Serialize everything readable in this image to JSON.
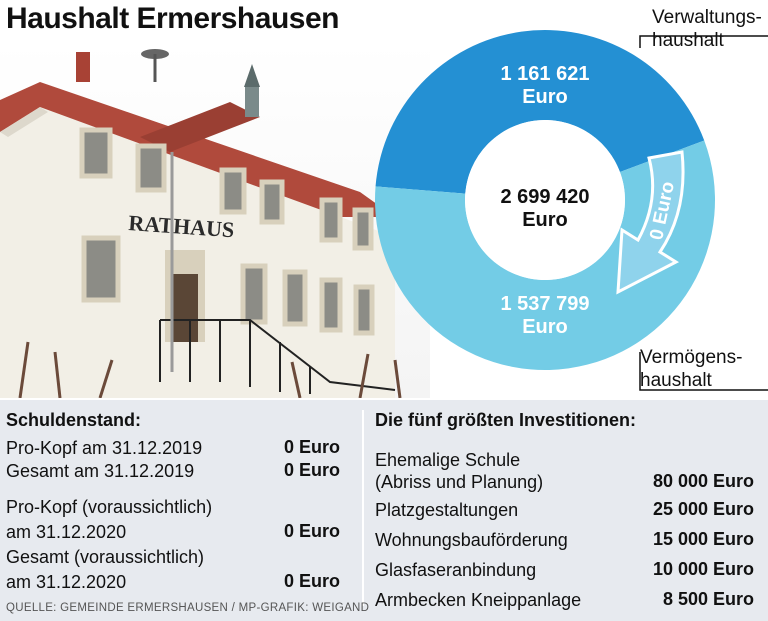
{
  "title": "Haushalt Ermershausen",
  "photo": {
    "sign_text": "RATHAUS"
  },
  "chart_data": {
    "type": "pie",
    "slices": [
      {
        "name": "Verwaltungshaushalt",
        "value": 1161621,
        "color": "#2490d3",
        "value_label": "1 161 621",
        "unit_label": "Euro"
      },
      {
        "name": "Vermögenshaushalt",
        "value": 1537799,
        "color": "#73cce6",
        "value_label": "1 537 799",
        "unit_label": "Euro"
      }
    ],
    "total": {
      "value": 2699420,
      "value_label": "2 699 420",
      "unit_label": "Euro"
    },
    "transfer": {
      "value": 0,
      "label": "0 Euro"
    },
    "legend_labels": {
      "top": [
        "Verwaltungs-",
        "haushalt"
      ],
      "bottom": [
        "Vermögens-",
        "haushalt"
      ]
    }
  },
  "debt": {
    "heading": "Schuldenstand:",
    "rows": [
      {
        "label": "Pro-Kopf am 31.12.2019",
        "value": "0 Euro"
      },
      {
        "label": "Gesamt am 31.12.2019",
        "value": "0 Euro"
      },
      {
        "label": "Pro-Kopf (voraussichtlich)",
        "value": ""
      },
      {
        "label": "am 31.12.2020",
        "value": "0 Euro"
      },
      {
        "label": "Gesamt (voraussichtlich)",
        "value": ""
      },
      {
        "label": "am 31.12.2020",
        "value": "0 Euro"
      }
    ]
  },
  "investments": {
    "heading": "Die fünf größten Investitionen:",
    "rows": [
      {
        "label": "Ehemalige Schule",
        "value": ""
      },
      {
        "label": "(Abriss und Planung)",
        "value": "80 000 Euro"
      },
      {
        "label": "Platzgestaltungen",
        "value": "25 000 Euro"
      },
      {
        "label": "Wohnungsbauförderung",
        "value": "15 000 Euro"
      },
      {
        "label": "Glasfaseranbindung",
        "value": "10 000 Euro"
      },
      {
        "label": "Armbecken Kneippanlage",
        "value": "8 500 Euro"
      }
    ]
  },
  "source": "QUELLE: GEMEINDE ERMERSHAUSEN / MP-GRAFIK: WEIGAND"
}
